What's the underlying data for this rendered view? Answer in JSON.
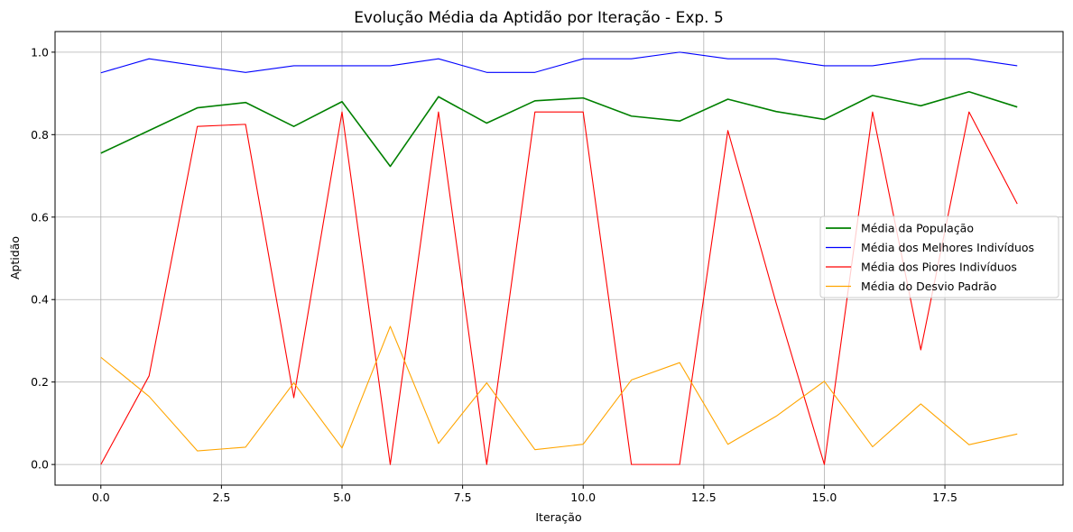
{
  "chart_data": {
    "type": "line",
    "title": "Evolução Média da Aptidão por Iteração - Exp. 5",
    "xlabel": "Iteração",
    "ylabel": "Aptidão",
    "xlim": [
      -0.95,
      19.95
    ],
    "ylim": [
      -0.05,
      1.05
    ],
    "xticks": [
      "0.0",
      "2.5",
      "5.0",
      "7.5",
      "10.0",
      "12.5",
      "15.0",
      "17.5"
    ],
    "yticks": [
      "0.0",
      "0.2",
      "0.4",
      "0.6",
      "0.8",
      "1.0"
    ],
    "grid": true,
    "legend_position": "center-right",
    "x": [
      0,
      1,
      2,
      3,
      4,
      5,
      6,
      7,
      8,
      9,
      10,
      11,
      12,
      13,
      14,
      15,
      16,
      17,
      18,
      19
    ],
    "series": [
      {
        "name": "Média da População",
        "color": "#008000",
        "values": [
          0.755,
          0.81,
          0.865,
          0.878,
          0.82,
          0.88,
          0.723,
          0.892,
          0.828,
          0.882,
          0.889,
          0.845,
          0.833,
          0.886,
          0.856,
          0.837,
          0.895,
          0.87,
          0.904,
          0.867
        ]
      },
      {
        "name": "Média dos Melhores Indivíduos",
        "color": "#0000ff",
        "values": [
          0.95,
          0.984,
          0.967,
          0.951,
          0.967,
          0.967,
          0.967,
          0.984,
          0.951,
          0.951,
          0.984,
          0.984,
          1.0,
          0.984,
          0.984,
          0.967,
          0.967,
          0.984,
          0.984,
          0.967
        ]
      },
      {
        "name": "Média dos Piores Indivíduos",
        "color": "#ff0000",
        "values": [
          0.0,
          0.215,
          0.82,
          0.825,
          0.162,
          0.855,
          0.0,
          0.855,
          0.0,
          0.855,
          0.855,
          0.0,
          0.0,
          0.81,
          0.392,
          0.0,
          0.855,
          0.278,
          0.855,
          0.632
        ]
      },
      {
        "name": "Média do Desvio Padrão",
        "color": "#ffa500",
        "values": [
          0.26,
          0.165,
          0.033,
          0.042,
          0.198,
          0.04,
          0.335,
          0.051,
          0.198,
          0.036,
          0.049,
          0.205,
          0.247,
          0.049,
          0.117,
          0.202,
          0.043,
          0.147,
          0.048,
          0.074
        ]
      }
    ]
  }
}
